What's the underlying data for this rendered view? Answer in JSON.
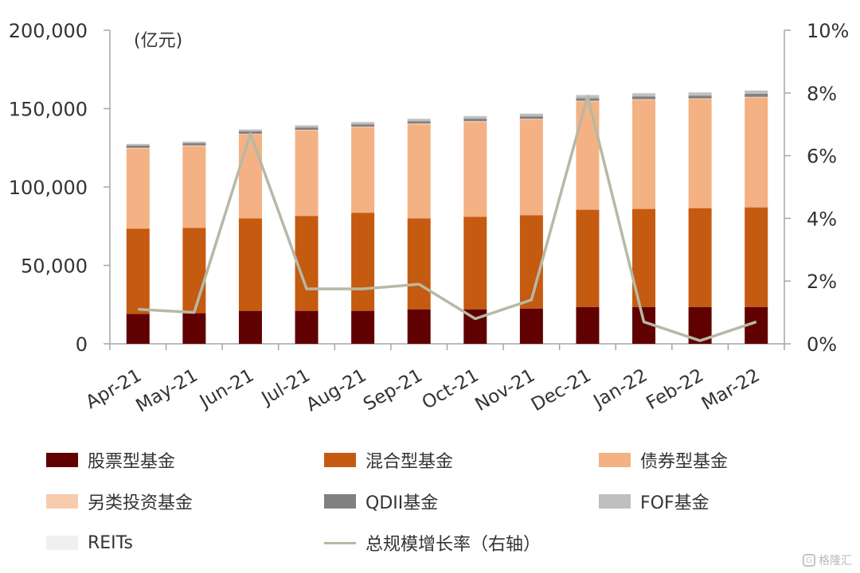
{
  "chart_data": {
    "type": "bar",
    "unit_label": "(亿元)",
    "categories": [
      "Apr-21",
      "May-21",
      "Jun-21",
      "Jul-21",
      "Aug-21",
      "Sep-21",
      "Oct-21",
      "Nov-21",
      "Dec-21",
      "Jan-22",
      "Feb-22",
      "Mar-22"
    ],
    "y_left": {
      "ylim": [
        0,
        200000
      ],
      "ticks": [
        "0",
        "50,000",
        "100,000",
        "150,000",
        "200,000"
      ]
    },
    "y_right": {
      "ylim": [
        0,
        10
      ],
      "ticks": [
        "0%",
        "2%",
        "4%",
        "6%",
        "8%",
        "10%"
      ]
    },
    "series": [
      {
        "name": "股票型基金",
        "kind": "bar",
        "color": "#600000",
        "values": [
          19000,
          19500,
          21000,
          21000,
          21000,
          22000,
          22000,
          22500,
          23500,
          23500,
          23500,
          23500
        ]
      },
      {
        "name": "混合型基金",
        "kind": "bar",
        "color": "#c55a11",
        "values": [
          54500,
          54500,
          59000,
          60500,
          62500,
          58000,
          59000,
          59500,
          62000,
          62500,
          63000,
          63500
        ]
      },
      {
        "name": "债券型基金",
        "kind": "bar",
        "color": "#f4b183",
        "values": [
          51000,
          52000,
          53500,
          54500,
          54500,
          60000,
          60500,
          61000,
          69000,
          69500,
          69500,
          70000
        ]
      },
      {
        "name": "另类投资基金",
        "kind": "bar",
        "color": "#f8cbad",
        "values": [
          500,
          500,
          500,
          500,
          500,
          500,
          500,
          500,
          500,
          500,
          500,
          500
        ]
      },
      {
        "name": "QDII基金",
        "kind": "bar",
        "color": "#808080",
        "values": [
          1500,
          1500,
          1500,
          1500,
          1500,
          1500,
          1600,
          1600,
          1700,
          1800,
          1800,
          1900
        ]
      },
      {
        "name": "FOF基金",
        "kind": "bar",
        "color": "#bfbfbf",
        "values": [
          1000,
          1000,
          1200,
          1300,
          1400,
          1500,
          1600,
          1700,
          1900,
          2000,
          2000,
          2100
        ]
      },
      {
        "name": "REITs",
        "kind": "bar",
        "color": "#f0f0f0",
        "values": [
          0,
          0,
          300,
          300,
          300,
          300,
          300,
          300,
          400,
          400,
          400,
          400
        ]
      },
      {
        "name": "总规模增长率（右轴）",
        "kind": "line",
        "color": "#b6b9a4",
        "values": [
          1.1,
          1.0,
          6.7,
          1.75,
          1.75,
          1.9,
          0.8,
          1.4,
          7.9,
          0.7,
          0.1,
          0.7
        ]
      }
    ]
  },
  "legend": [
    {
      "label": "股票型基金",
      "color": "#600000",
      "kind": "bar"
    },
    {
      "label": "混合型基金",
      "color": "#c55a11",
      "kind": "bar"
    },
    {
      "label": "债券型基金",
      "color": "#f4b183",
      "kind": "bar"
    },
    {
      "label": "另类投资基金",
      "color": "#f8cbad",
      "kind": "bar"
    },
    {
      "label": "QDII基金",
      "color": "#808080",
      "kind": "bar"
    },
    {
      "label": "FOF基金",
      "color": "#bfbfbf",
      "kind": "bar"
    },
    {
      "label": "REITs",
      "color": "#f0f0f0",
      "kind": "bar"
    },
    {
      "label": "总规模增长率（右轴）",
      "color": "#b6b9a4",
      "kind": "line"
    }
  ],
  "watermark": {
    "text": "格隆汇",
    "icon": "G"
  }
}
